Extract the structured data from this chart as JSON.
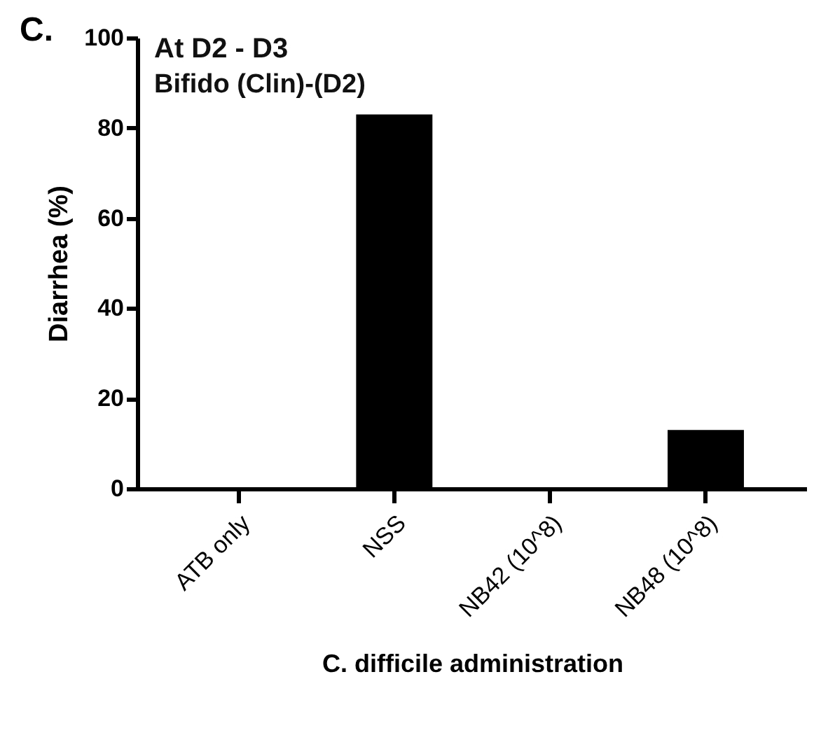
{
  "chart_data": {
    "type": "bar",
    "title": "At D2 - D3",
    "subtitle": "Bifido (Clin)-(D2)",
    "annotations": [
      "C."
    ],
    "xlabel": "C. difficile administration",
    "ylabel": "Diarrhea (%)",
    "categories": [
      "ATB only",
      "NSS",
      "NB42 (10^8)",
      "NB48 (10^8)"
    ],
    "values": [
      0,
      83,
      0,
      13
    ],
    "color": "#000000",
    "ylim": [
      0,
      100
    ],
    "yticks": [
      0,
      20,
      40,
      60,
      80,
      100
    ],
    "grid": false
  }
}
